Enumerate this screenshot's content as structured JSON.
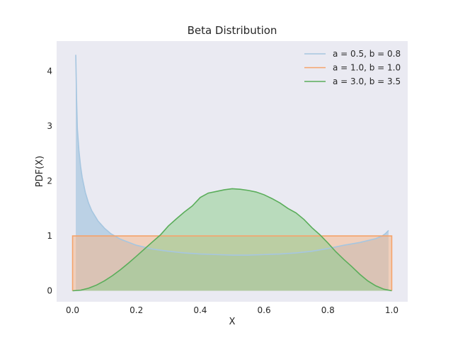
{
  "chart_data": {
    "type": "area",
    "title": "Beta Distribution",
    "xlabel": "X",
    "ylabel": "PDF(X)",
    "xlim": [
      -0.05,
      1.05
    ],
    "ylim": [
      -0.2,
      4.55
    ],
    "xticks": [
      "0.0",
      "0.2",
      "0.4",
      "0.6",
      "0.8",
      "1.0"
    ],
    "yticks": [
      "0",
      "1",
      "2",
      "3",
      "4"
    ],
    "grid": false,
    "legend_position": "top-right",
    "background": "#eaeaf2",
    "series": [
      {
        "name": "a = 0.5, b = 0.8",
        "color": "#a6c6e0",
        "fill": "#a6c6e0",
        "x": [
          0.01,
          0.0125,
          0.015,
          0.02,
          0.025,
          0.03,
          0.04,
          0.05,
          0.06,
          0.08,
          0.1,
          0.12,
          0.15,
          0.2,
          0.25,
          0.3,
          0.35,
          0.4,
          0.45,
          0.5,
          0.55,
          0.6,
          0.65,
          0.7,
          0.75,
          0.8,
          0.85,
          0.9,
          0.95,
          0.97,
          0.98,
          0.99
        ],
        "y": [
          4.3,
          3.5,
          2.95,
          2.55,
          2.27,
          2.07,
          1.79,
          1.6,
          1.46,
          1.27,
          1.14,
          1.04,
          0.94,
          0.83,
          0.76,
          0.72,
          0.69,
          0.67,
          0.66,
          0.65,
          0.65,
          0.66,
          0.67,
          0.69,
          0.72,
          0.77,
          0.83,
          0.88,
          0.95,
          1.0,
          1.04,
          1.1
        ]
      },
      {
        "name": "a = 1.0, b = 1.0",
        "color": "#f5a36b",
        "fill": "#f4b88e",
        "x": [
          0.0,
          0.0,
          1.0,
          1.0
        ],
        "y": [
          0.0,
          1.0,
          1.0,
          0.0
        ]
      },
      {
        "name": "a = 3.0, b = 3.5",
        "color": "#5aad5a",
        "fill": "#8fce8f",
        "x": [
          0.0,
          0.025,
          0.05,
          0.075,
          0.1,
          0.125,
          0.15,
          0.175,
          0.2,
          0.225,
          0.25,
          0.275,
          0.3,
          0.325,
          0.35,
          0.375,
          0.4,
          0.425,
          0.45,
          0.475,
          0.5,
          0.525,
          0.55,
          0.575,
          0.6,
          0.625,
          0.65,
          0.675,
          0.7,
          0.725,
          0.75,
          0.775,
          0.8,
          0.825,
          0.85,
          0.875,
          0.9,
          0.925,
          0.95,
          0.975,
          1.0
        ],
        "y": [
          0.0,
          0.011,
          0.047,
          0.104,
          0.181,
          0.276,
          0.384,
          0.503,
          0.63,
          0.76,
          0.89,
          1.016,
          1.18,
          1.31,
          1.434,
          1.545,
          1.7,
          1.78,
          1.81,
          1.84,
          1.86,
          1.85,
          1.83,
          1.8,
          1.75,
          1.68,
          1.6,
          1.5,
          1.42,
          1.3,
          1.15,
          1.02,
          0.87,
          0.71,
          0.57,
          0.44,
          0.3,
          0.18,
          0.09,
          0.03,
          0.0
        ]
      }
    ]
  }
}
